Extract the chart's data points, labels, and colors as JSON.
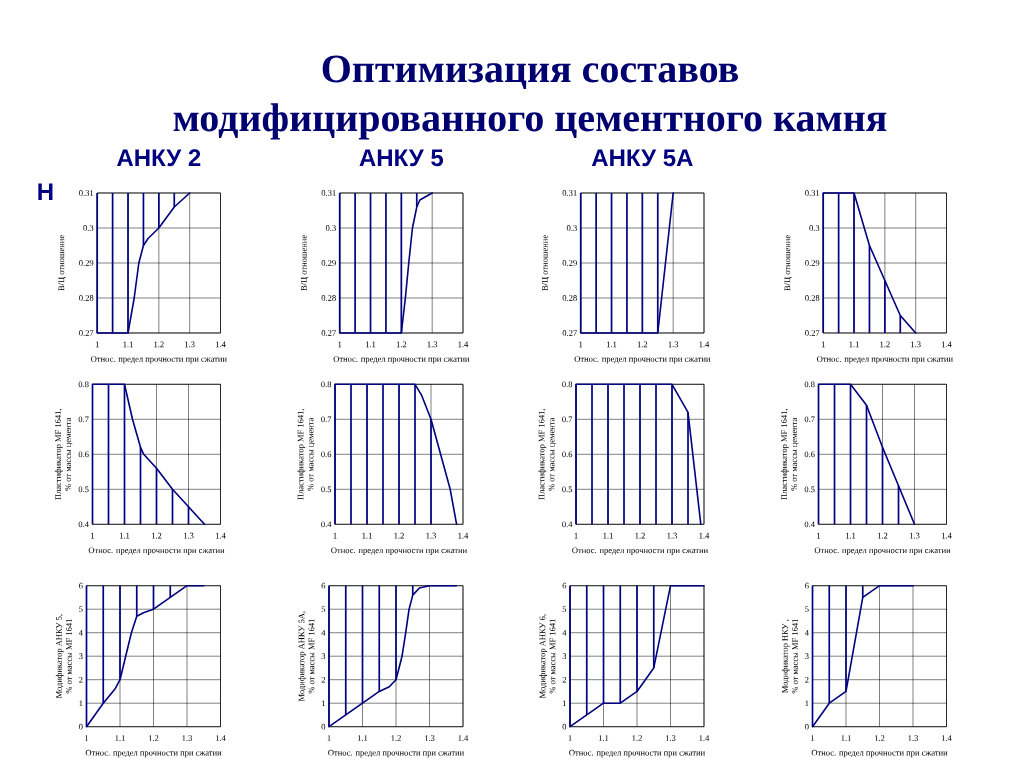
{
  "chart_data": [
    {
      "type": "other",
      "title": "Оптимизация составов\nмодифицированного цементного камня"
    },
    {
      "type": "line",
      "title": "АНКУ 2",
      "annotations": [
        "Н"
      ],
      "xlabel": "Относ. предел прочности при сжатии",
      "ylabel": "В/Ц отношение",
      "xlim": [
        1,
        1.4
      ],
      "xticks": [
        1,
        1.1,
        1.2,
        1.3,
        1.4
      ],
      "ylim": [
        0.27,
        0.31
      ],
      "yticks": [
        0.27,
        0.28,
        0.29,
        0.3,
        0.31
      ],
      "grid": true,
      "series": [
        {
          "type": "bar",
          "color": "#000080",
          "x": [
            1,
            1.05,
            1.1,
            1.15,
            1.2,
            1.25
          ],
          "base": [
            0.27,
            0.27,
            0.27,
            0.295,
            0.3,
            0.306
          ],
          "values": [
            0.04,
            0.04,
            0.04,
            0.015,
            0.01,
            0.004
          ]
        },
        {
          "type": "line",
          "color": "#000080",
          "x": [
            1,
            1.1,
            1.12,
            1.135,
            1.15,
            1.165,
            1.2,
            1.25,
            1.3
          ],
          "values": [
            0.27,
            0.27,
            0.28,
            0.29,
            0.295,
            0.297,
            0.3,
            0.306,
            0.31
          ]
        }
      ]
    },
    {
      "type": "line",
      "title": "АНКУ 5",
      "xlabel": "Относ. предел прочности при сжатии",
      "ylabel": "В/Ц отношение",
      "xlim": [
        1,
        1.4
      ],
      "xticks": [
        1,
        1.1,
        1.2,
        1.3,
        1.4
      ],
      "ylim": [
        0.27,
        0.31
      ],
      "yticks": [
        0.27,
        0.28,
        0.29,
        0.3,
        0.31
      ],
      "grid": true,
      "series": [
        {
          "type": "bar",
          "color": "#000080",
          "x": [
            1,
            1.05,
            1.1,
            1.15,
            1.2,
            1.25
          ],
          "base": [
            0.27,
            0.27,
            0.27,
            0.27,
            0.27,
            0.306
          ],
          "values": [
            0.04,
            0.04,
            0.04,
            0.04,
            0.04,
            0.004
          ]
        },
        {
          "type": "line",
          "color": "#000080",
          "x": [
            1,
            1.2,
            1.213,
            1.224,
            1.236,
            1.25,
            1.26,
            1.3
          ],
          "values": [
            0.27,
            0.27,
            0.28,
            0.29,
            0.3,
            0.306,
            0.308,
            0.31
          ]
        }
      ]
    },
    {
      "type": "line",
      "title": "АНКУ 5А",
      "xlabel": "Относ. предел прочности при сжатии",
      "ylabel": "В/Ц отношение",
      "xlim": [
        1,
        1.4
      ],
      "xticks": [
        1,
        1.1,
        1.2,
        1.3,
        1.4
      ],
      "ylim": [
        0.27,
        0.31
      ],
      "yticks": [
        0.27,
        0.28,
        0.29,
        0.3,
        0.31
      ],
      "grid": true,
      "series": [
        {
          "type": "bar",
          "color": "#000080",
          "x": [
            1,
            1.05,
            1.1,
            1.15,
            1.2,
            1.25
          ],
          "base": [
            0.27,
            0.27,
            0.27,
            0.27,
            0.27,
            0.27
          ],
          "values": [
            0.04,
            0.04,
            0.04,
            0.04,
            0.04,
            0.04
          ]
        },
        {
          "type": "line",
          "color": "#000080",
          "x": [
            1,
            1.25,
            1.3
          ],
          "values": [
            0.27,
            0.27,
            0.31
          ]
        }
      ]
    },
    {
      "type": "line",
      "xlabel": "Относ. предел прочности при сжатии",
      "ylabel": "В/Ц отношение",
      "xlim": [
        1,
        1.4
      ],
      "xticks": [
        1,
        1.1,
        1.2,
        1.3,
        1.4
      ],
      "ylim": [
        0.27,
        0.31
      ],
      "yticks": [
        0.27,
        0.28,
        0.29,
        0.3,
        0.31
      ],
      "grid": true,
      "series": [
        {
          "type": "bar",
          "color": "#000080",
          "x": [
            1,
            1.05,
            1.1,
            1.15,
            1.2,
            1.25
          ],
          "base": [
            0.27,
            0.27,
            0.27,
            0.27,
            0.27,
            0.27
          ],
          "values": [
            0.04,
            0.04,
            0.04,
            0.025,
            0.015,
            0.005
          ]
        },
        {
          "type": "line",
          "color": "#000080",
          "x": [
            1,
            1.1,
            1.15,
            1.2,
            1.25,
            1.3
          ],
          "values": [
            0.31,
            0.31,
            0.295,
            0.285,
            0.275,
            0.27
          ]
        }
      ]
    },
    {
      "type": "line",
      "xlabel": "Относ. предел прочности при сжатии",
      "ylabel": "Пластификатор MF 1641,\n% от массы цемента",
      "xlim": [
        1,
        1.4
      ],
      "xticks": [
        1,
        1.1,
        1.2,
        1.3,
        1.4
      ],
      "ylim": [
        0.4,
        0.8
      ],
      "yticks": [
        0.4,
        0.5,
        0.6,
        0.7,
        0.8
      ],
      "grid": true,
      "series": [
        {
          "type": "bar",
          "color": "#000080",
          "x": [
            1,
            1.05,
            1.1,
            1.15,
            1.2,
            1.25,
            1.3
          ],
          "base": [
            0.4,
            0.4,
            0.4,
            0.4,
            0.4,
            0.4,
            0.4
          ],
          "values": [
            0.4,
            0.4,
            0.4,
            0.22,
            0.16,
            0.1,
            0.05
          ]
        },
        {
          "type": "line",
          "color": "#000080",
          "x": [
            1,
            1.1,
            1.125,
            1.15,
            1.16,
            1.2,
            1.25,
            1.3,
            1.35
          ],
          "values": [
            0.8,
            0.8,
            0.7,
            0.62,
            0.6,
            0.56,
            0.5,
            0.45,
            0.4
          ]
        }
      ]
    },
    {
      "type": "line",
      "xlabel": "Относ. предел прочности при сжатии",
      "ylabel": "Пластификатор MF 1641,\n% от массы цемента",
      "xlim": [
        1,
        1.4
      ],
      "xticks": [
        1,
        1.1,
        1.2,
        1.3,
        1.4
      ],
      "ylim": [
        0.4,
        0.8
      ],
      "yticks": [
        0.4,
        0.5,
        0.6,
        0.7,
        0.8
      ],
      "grid": true,
      "series": [
        {
          "type": "bar",
          "color": "#000080",
          "x": [
            1,
            1.05,
            1.1,
            1.15,
            1.2,
            1.25,
            1.3
          ],
          "base": [
            0.4,
            0.4,
            0.4,
            0.4,
            0.4,
            0.4,
            0.4
          ],
          "values": [
            0.4,
            0.4,
            0.4,
            0.4,
            0.4,
            0.4,
            0.3
          ]
        },
        {
          "type": "line",
          "color": "#000080",
          "x": [
            1,
            1.25,
            1.27,
            1.3,
            1.33,
            1.36,
            1.38
          ],
          "values": [
            0.8,
            0.8,
            0.77,
            0.7,
            0.6,
            0.5,
            0.4
          ]
        }
      ]
    },
    {
      "type": "line",
      "xlabel": "Относ. предел прочности при сжатии",
      "ylabel": "Пластификатор MF 1641,\n% от массы цемента",
      "xlim": [
        1,
        1.4
      ],
      "xticks": [
        1,
        1.1,
        1.2,
        1.3,
        1.4
      ],
      "ylim": [
        0.4,
        0.8
      ],
      "yticks": [
        0.4,
        0.5,
        0.6,
        0.7,
        0.8
      ],
      "grid": true,
      "series": [
        {
          "type": "bar",
          "color": "#000080",
          "x": [
            1,
            1.05,
            1.1,
            1.15,
            1.2,
            1.25,
            1.3,
            1.35
          ],
          "base": [
            0.4,
            0.4,
            0.4,
            0.4,
            0.4,
            0.4,
            0.4,
            0.4
          ],
          "values": [
            0.4,
            0.4,
            0.4,
            0.4,
            0.4,
            0.4,
            0.4,
            0.32
          ]
        },
        {
          "type": "line",
          "color": "#000080",
          "x": [
            1,
            1.3,
            1.35,
            1.39
          ],
          "values": [
            0.8,
            0.8,
            0.72,
            0.4
          ]
        }
      ]
    },
    {
      "type": "line",
      "xlabel": "Относ. предел прочности при сжатии",
      "ylabel": "Пластификатор MF 1641,\n% от массы цемента",
      "xlim": [
        1,
        1.4
      ],
      "xticks": [
        1,
        1.1,
        1.2,
        1.3,
        1.4
      ],
      "ylim": [
        0.4,
        0.8
      ],
      "yticks": [
        0.4,
        0.5,
        0.6,
        0.7,
        0.8
      ],
      "grid": true,
      "series": [
        {
          "type": "bar",
          "color": "#000080",
          "x": [
            1,
            1.05,
            1.1,
            1.15,
            1.2,
            1.25
          ],
          "base": [
            0.4,
            0.4,
            0.4,
            0.4,
            0.4,
            0.4
          ],
          "values": [
            0.4,
            0.4,
            0.4,
            0.34,
            0.22,
            0.11
          ]
        },
        {
          "type": "line",
          "color": "#000080",
          "x": [
            1,
            1.1,
            1.15,
            1.2,
            1.25,
            1.3
          ],
          "values": [
            0.8,
            0.8,
            0.74,
            0.62,
            0.51,
            0.4
          ]
        }
      ]
    },
    {
      "type": "line",
      "xlabel": "Относ. предел прочности при сжатии",
      "ylabel": "Модификатор АНКУ 5,\n% от массы MF 1641",
      "xlim": [
        1,
        1.4
      ],
      "xticks": [
        1,
        1.1,
        1.2,
        1.3,
        1.4
      ],
      "ylim": [
        0,
        6
      ],
      "yticks": [
        0,
        1,
        2,
        3,
        4,
        5,
        6
      ],
      "grid": true,
      "series": [
        {
          "type": "bar",
          "color": "#000080",
          "x": [
            1,
            1.05,
            1.1,
            1.15,
            1.2,
            1.25
          ],
          "base": [
            0,
            1,
            2,
            4.7,
            5,
            5.5
          ],
          "values": [
            6,
            5,
            4,
            1.3,
            1,
            0.5
          ]
        },
        {
          "type": "line",
          "color": "#000080",
          "x": [
            1,
            1.05,
            1.085,
            1.1,
            1.117,
            1.134,
            1.15,
            1.17,
            1.2,
            1.25,
            1.3,
            1.35
          ],
          "values": [
            0,
            1,
            1.6,
            2,
            3,
            4,
            4.7,
            4.85,
            5,
            5.5,
            6,
            6
          ]
        }
      ]
    },
    {
      "type": "line",
      "xlabel": "Относ. предел прочности при сжатии",
      "ylabel": "Модификатор АНКУ 5А,\n% от массы MF 1641",
      "xlim": [
        1,
        1.4
      ],
      "xticks": [
        1,
        1.1,
        1.2,
        1.3,
        1.4
      ],
      "ylim": [
        0,
        6
      ],
      "yticks": [
        0,
        1,
        2,
        3,
        4,
        5,
        6
      ],
      "grid": true,
      "series": [
        {
          "type": "bar",
          "color": "#000080",
          "x": [
            1,
            1.05,
            1.1,
            1.15,
            1.2,
            1.25
          ],
          "base": [
            0,
            0.5,
            1,
            1.5,
            2,
            5.6
          ],
          "values": [
            6,
            5.5,
            5,
            4.5,
            4,
            0.4
          ]
        },
        {
          "type": "line",
          "color": "#000080",
          "x": [
            1,
            1.05,
            1.1,
            1.15,
            1.18,
            1.2,
            1.218,
            1.229,
            1.239,
            1.25,
            1.27,
            1.3,
            1.38
          ],
          "values": [
            0,
            0.5,
            1,
            1.5,
            1.7,
            2,
            3,
            4,
            5,
            5.6,
            5.9,
            6,
            6
          ]
        }
      ]
    },
    {
      "type": "line",
      "xlabel": "Относ. предел прочности при сжатии",
      "ylabel": "Модификатор АНКУ 6,\n% от массы MF 1641",
      "xlim": [
        1,
        1.4
      ],
      "xticks": [
        1,
        1.1,
        1.2,
        1.3,
        1.4
      ],
      "ylim": [
        0,
        6
      ],
      "yticks": [
        0,
        1,
        2,
        3,
        4,
        5,
        6
      ],
      "grid": true,
      "series": [
        {
          "type": "bar",
          "color": "#000080",
          "x": [
            1,
            1.05,
            1.1,
            1.15,
            1.2,
            1.25
          ],
          "base": [
            0,
            0.5,
            1,
            1,
            1.5,
            2.5
          ],
          "values": [
            6,
            5.5,
            5,
            5,
            4.5,
            3.5
          ]
        },
        {
          "type": "line",
          "color": "#000080",
          "x": [
            1,
            1.05,
            1.1,
            1.15,
            1.2,
            1.25,
            1.3,
            1.4
          ],
          "values": [
            0,
            0.5,
            1,
            1,
            1.5,
            2.5,
            6,
            6
          ]
        }
      ]
    },
    {
      "type": "line",
      "xlabel": "Относ. предел прочности при сжатии",
      "ylabel": "Модификатор НКУ ,\n% от массы MF 1641",
      "xlim": [
        1,
        1.4
      ],
      "xticks": [
        1,
        1.1,
        1.2,
        1.3,
        1.4
      ],
      "ylim": [
        0,
        6
      ],
      "yticks": [
        0,
        1,
        2,
        3,
        4,
        5,
        6
      ],
      "grid": true,
      "series": [
        {
          "type": "bar",
          "color": "#000080",
          "x": [
            1,
            1.05,
            1.1,
            1.15
          ],
          "base": [
            0,
            1,
            1.5,
            5.5
          ],
          "values": [
            6,
            5,
            4.5,
            0.5
          ]
        },
        {
          "type": "line",
          "color": "#000080",
          "x": [
            1,
            1.05,
            1.1,
            1.15,
            1.2,
            1.3
          ],
          "values": [
            0,
            1,
            1.5,
            5.5,
            6,
            6
          ]
        }
      ]
    }
  ]
}
